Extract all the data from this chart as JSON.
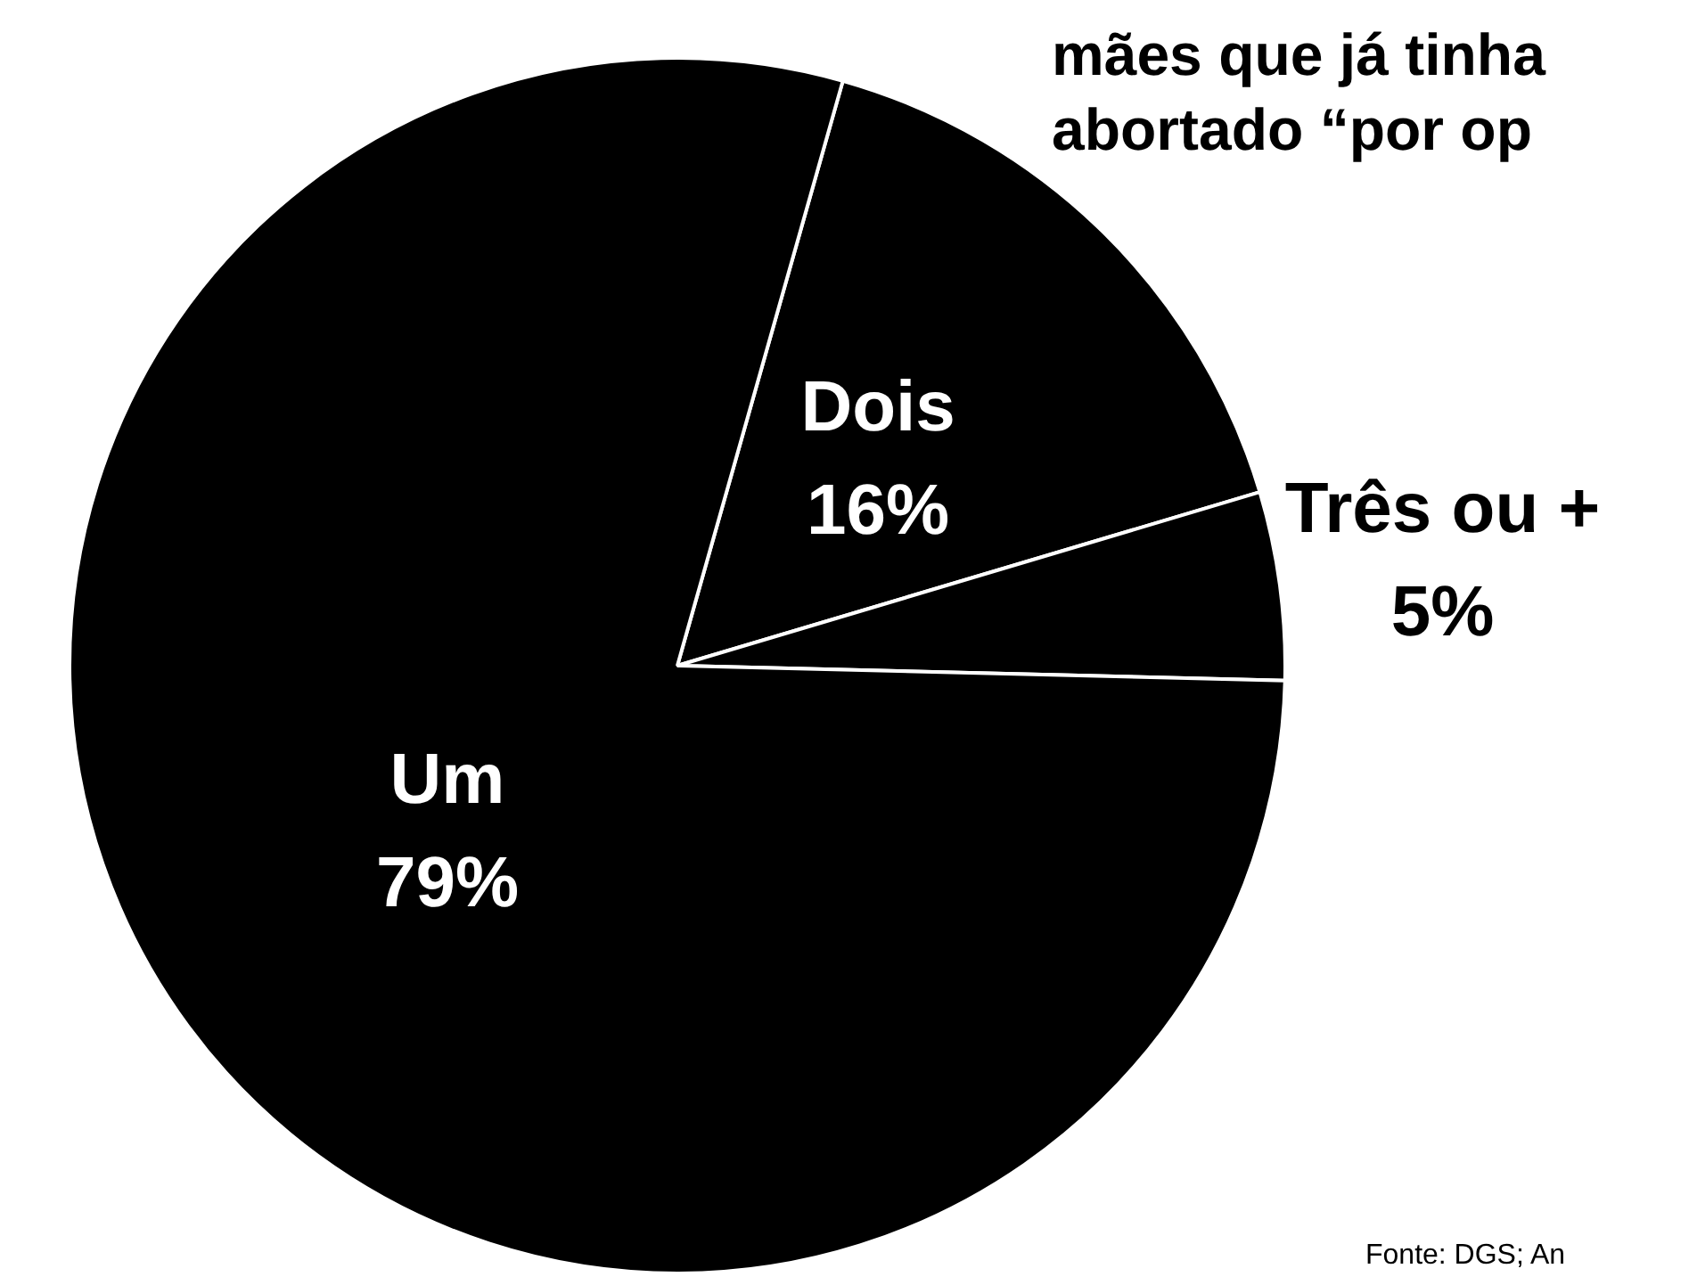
{
  "chart_data": {
    "type": "pie",
    "title": "mães que já tinha\nabortado “por op",
    "categories": [
      "Dois",
      "Três ou +",
      "Um"
    ],
    "values": [
      16,
      5,
      79
    ],
    "colors": [
      "#000000",
      "#000000",
      "#000000"
    ],
    "value_labels": [
      "16%",
      "5%",
      "79%"
    ],
    "legend": false,
    "annotations": [
      "Fonte: DGS; An"
    ]
  }
}
